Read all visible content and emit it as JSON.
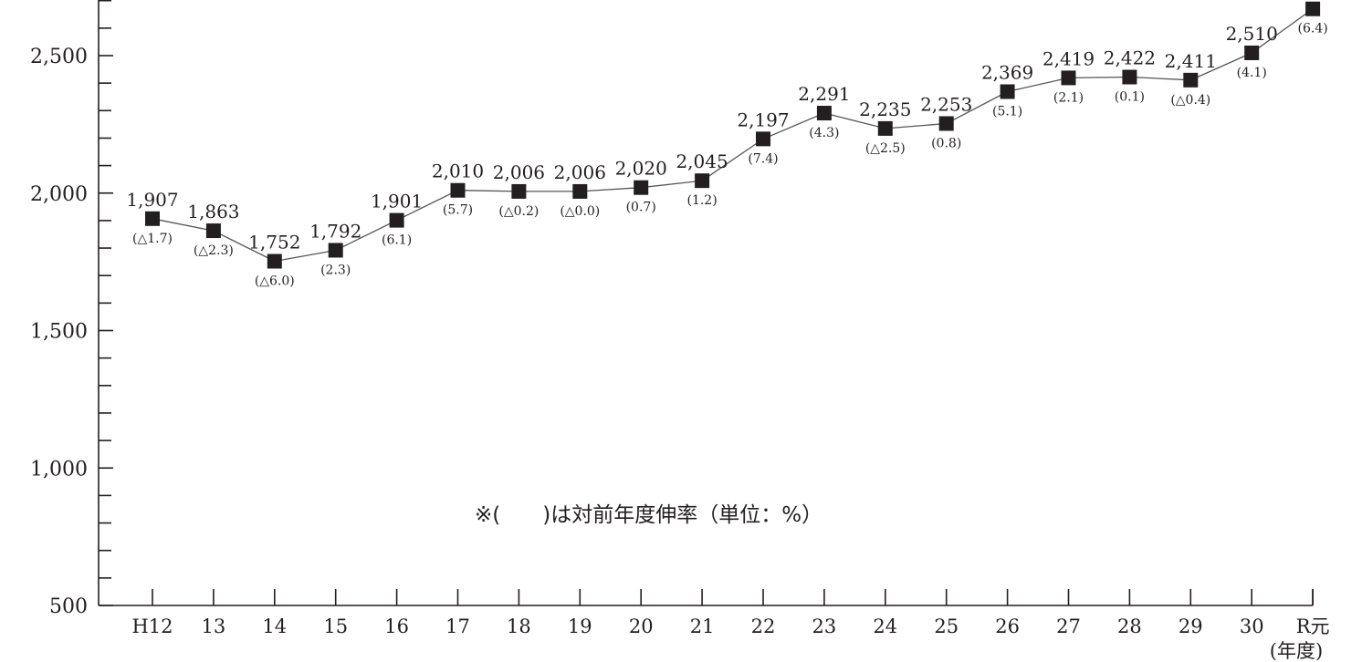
{
  "chart_data": {
    "type": "line",
    "categories": [
      "H12",
      "13",
      "14",
      "15",
      "16",
      "17",
      "18",
      "19",
      "20",
      "21",
      "22",
      "23",
      "24",
      "25",
      "26",
      "27",
      "28",
      "29",
      "30",
      "R元"
    ],
    "values": [
      1907,
      1863,
      1752,
      1792,
      1901,
      2010,
      2006,
      2006,
      2020,
      2045,
      2197,
      2291,
      2235,
      2253,
      2369,
      2419,
      2422,
      2411,
      2510,
      2670
    ],
    "value_labels": [
      "1,907",
      "1,863",
      "1,752",
      "1,792",
      "1,901",
      "2,010",
      "2,006",
      "2,006",
      "2,020",
      "2,045",
      "2,197",
      "2,291",
      "2,235",
      "2,253",
      "2,369",
      "2,419",
      "2,422",
      "2,411",
      "2,510",
      ""
    ],
    "growth_labels": [
      "(△1.7)",
      "(△2.3)",
      "(△6.0)",
      "(2.3)",
      "(6.1)",
      "(5.7)",
      "(△0.2)",
      "(△0.0)",
      "(0.7)",
      "(1.2)",
      "(7.4)",
      "(4.3)",
      "(△2.5)",
      "(0.8)",
      "(5.1)",
      "(2.1)",
      "(0.1)",
      "(△0.4)",
      "(4.1)",
      "(6.4)"
    ],
    "y_ticks": [
      500,
      1000,
      1500,
      2000,
      2500
    ],
    "y_tick_labels": [
      "500",
      "1,000",
      "1,500",
      "2,000",
      "2,500"
    ],
    "y_minor_step": 100,
    "ylim": [
      500,
      2700
    ],
    "xlabel": "(年度)",
    "note": "※(　　)は対前年度伸率（単位：%）",
    "grid": false,
    "marker": "square",
    "line_color": "#555555",
    "marker_color": "#231f20"
  }
}
